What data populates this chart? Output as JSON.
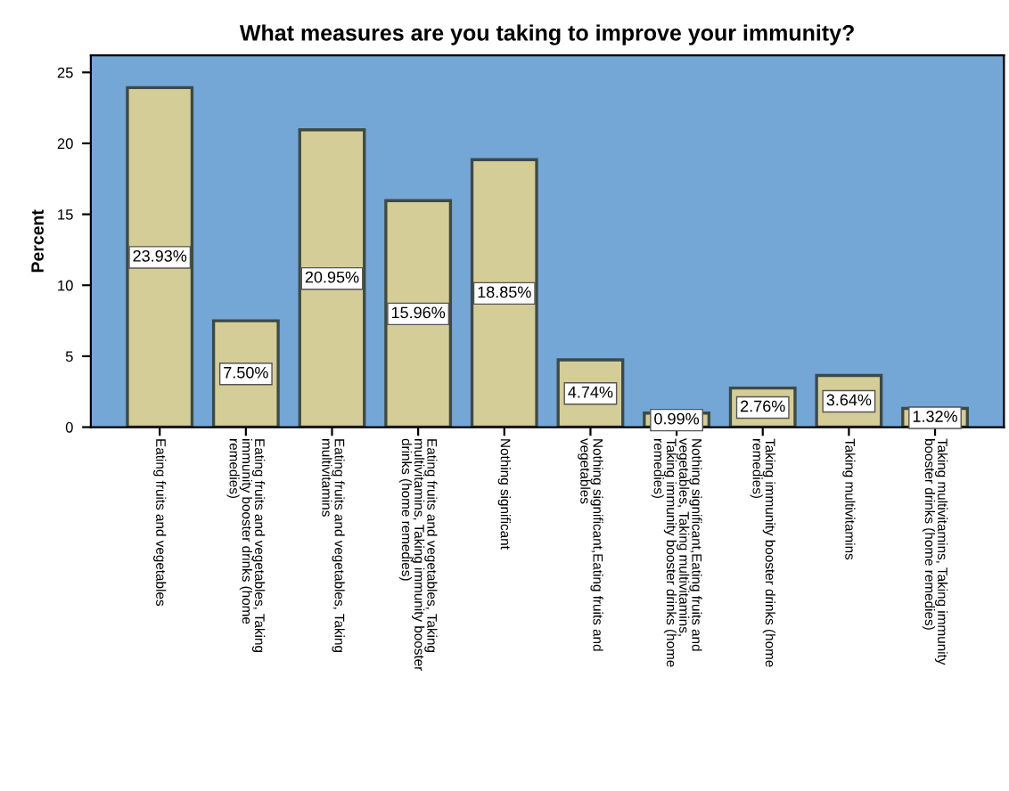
{
  "chart_data": {
    "type": "bar",
    "title": "What measures are you taking to improve your immunity?",
    "ylabel": "Percent",
    "categories": [
      "Eating fruits and vegetables",
      "Eating fruits and vegetables, Taking immunity booster drinks (home remedies)",
      "Eating fruits and vegetables, Taking multivitamins",
      "Eating fruits and vegetables, Taking multivitamins, Taking immunity booster drinks (home remedies)",
      "Nothing significant",
      "Nothing significant,Eating fruits and vegetables",
      "Nothing significant,Eating fruits and vegetables, Taking multivitamins, Taking immunity booster drinks (home remedies)",
      "Taking immunity booster drinks (home remedies)",
      "Taking multivitamins",
      "Taking multivitamins, Taking immunity booster drinks (home remedies)"
    ],
    "values": [
      23.93,
      7.5,
      20.95,
      15.96,
      18.85,
      4.74,
      0.99,
      2.76,
      3.64,
      1.32
    ],
    "value_labels": [
      "23.93%",
      "7.50%",
      "20.95%",
      "15.96%",
      "18.85%",
      "4.74%",
      "0.99%",
      "2.76%",
      "3.64%",
      "1.32%"
    ],
    "color": "#d5cd97",
    "ylim": [
      0,
      26.2
    ],
    "yticks": [
      0,
      5,
      10,
      15,
      20,
      25
    ],
    "grid": false
  }
}
